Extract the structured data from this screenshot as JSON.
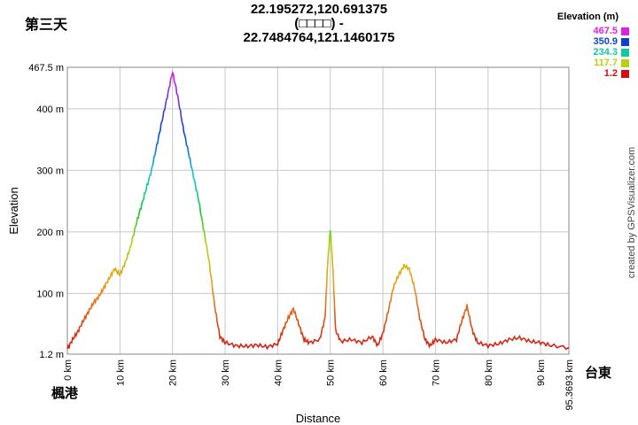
{
  "header": {
    "title_line1": "22.195272,120.691375",
    "title_line2": "(□□□□) -",
    "title_line3": "22.7484764,121.1460175",
    "corner_label": "第三天"
  },
  "places": {
    "start": "楓港",
    "end": "台東"
  },
  "credit": "created by GPSVisualizer.com",
  "legend": {
    "title": "Elevation (m)",
    "entries": [
      {
        "label": "467.5",
        "color": "#e020e0"
      },
      {
        "label": "350.9",
        "color": "#1040d0"
      },
      {
        "label": "234.3",
        "color": "#10c8a0"
      },
      {
        "label": "117.7",
        "color": "#b8d010"
      },
      {
        "label": "1.2",
        "color": "#d01010"
      }
    ]
  },
  "chart_data": {
    "type": "area",
    "title": "22.195272,120.691375 (□□□□) - 22.7484764,121.1460175",
    "xlabel": "Distance",
    "ylabel": "Elevation",
    "xlim": [
      0,
      95.3693
    ],
    "ylim": [
      1.2,
      467.5
    ],
    "x_ticks": [
      0,
      10,
      20,
      30,
      40,
      50,
      60,
      70,
      80,
      90,
      95.3693
    ],
    "x_tick_labels": [
      "0 km",
      "10 km",
      "20 km",
      "30 km",
      "40 km",
      "50 km",
      "60 km",
      "70 km",
      "80 km",
      "90 km",
      "95.3693 km"
    ],
    "y_ticks": [
      1.2,
      100,
      200,
      300,
      400,
      467.5
    ],
    "y_tick_labels": [
      "1.2 m",
      "100 m",
      "200 m",
      "300 m",
      "400 m",
      "467.5 m"
    ],
    "grid": true,
    "legend_position": "top-right",
    "x": [
      0,
      1,
      2,
      3,
      4,
      5,
      6,
      7,
      8,
      9,
      10,
      11,
      12,
      13,
      14,
      15,
      16,
      17,
      18,
      19,
      20,
      21,
      22,
      23,
      24,
      25,
      26,
      27,
      28,
      29,
      30,
      32,
      34,
      36,
      38,
      40,
      41,
      42,
      43,
      44,
      45,
      46,
      48,
      49,
      49.5,
      50,
      50.5,
      51,
      52,
      54,
      56,
      58,
      59,
      60,
      61,
      62,
      63,
      64,
      65,
      66,
      67,
      68,
      69,
      70,
      72,
      74,
      75,
      76,
      77,
      78,
      80,
      82,
      84,
      86,
      88,
      90,
      92,
      95.3693
    ],
    "y": [
      10,
      25,
      38,
      55,
      70,
      85,
      95,
      110,
      125,
      140,
      130,
      150,
      175,
      210,
      240,
      270,
      300,
      340,
      380,
      420,
      460,
      420,
      370,
      330,
      290,
      250,
      200,
      150,
      80,
      30,
      20,
      15,
      14,
      16,
      13,
      18,
      40,
      60,
      75,
      50,
      25,
      20,
      25,
      60,
      150,
      205,
      140,
      40,
      22,
      25,
      20,
      30,
      15,
      35,
      70,
      110,
      130,
      145,
      140,
      110,
      60,
      25,
      15,
      25,
      20,
      25,
      55,
      80,
      40,
      20,
      15,
      18,
      25,
      28,
      22,
      20,
      15,
      12
    ]
  }
}
